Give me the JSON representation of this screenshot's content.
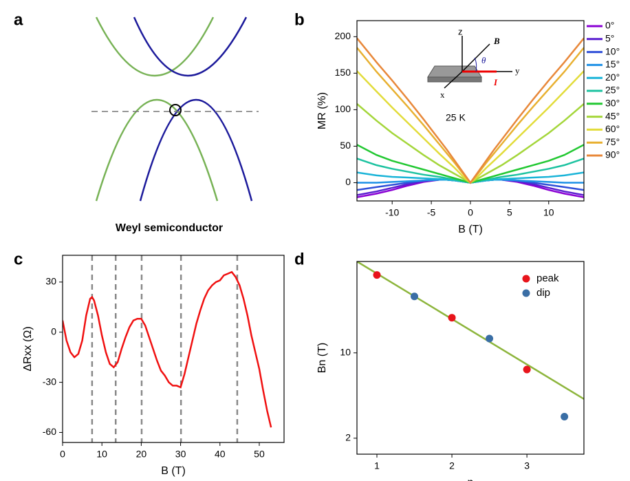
{
  "panel_a": {
    "label": "a",
    "caption": "Weyl semiconductor"
  },
  "chart_data": [
    {
      "type": "line",
      "panel_label": "b",
      "x_label": "B (T)",
      "y_label": "MR (%)",
      "annotation": "25 K",
      "inset_labels": [
        "z",
        "B",
        "θ",
        "y",
        "I",
        "x"
      ],
      "xlim": [
        -14.5,
        14.5
      ],
      "xticks": [
        -10,
        -5,
        0,
        5,
        10
      ],
      "ylim": [
        -25,
        222
      ],
      "yticks": [
        0,
        50,
        100,
        150,
        200
      ],
      "legend": "outside right",
      "x": [
        -14.5,
        -12,
        -10,
        -8,
        -6,
        -4,
        -3,
        -2,
        -1,
        0,
        1,
        2,
        3,
        4,
        6,
        8,
        10,
        12,
        14.5
      ],
      "series": [
        {
          "name": "0°",
          "color": "#8a00d4",
          "values": [
            -20,
            -15,
            -10,
            -4,
            1,
            4,
            4,
            3,
            1.5,
            0,
            1.5,
            3,
            4,
            4,
            1,
            -4,
            -10,
            -15,
            -20
          ]
        },
        {
          "name": "5°",
          "color": "#5a1fd0",
          "values": [
            -17,
            -12,
            -7,
            -2,
            2,
            4,
            4,
            3,
            1.5,
            0,
            1.5,
            3,
            4,
            4,
            2,
            -2,
            -7,
            -12,
            -17
          ]
        },
        {
          "name": "10°",
          "color": "#2f4fd8",
          "values": [
            -10,
            -6,
            -3,
            0,
            3,
            4,
            4,
            3,
            1.5,
            0,
            1.5,
            3,
            4,
            4,
            3,
            0,
            -3,
            -6,
            -10
          ]
        },
        {
          "name": "15°",
          "color": "#1e90e6",
          "values": [
            0,
            0,
            1,
            2,
            3,
            4,
            4,
            3,
            1.5,
            0,
            1.5,
            3,
            4,
            4,
            3,
            2,
            1,
            0,
            0
          ]
        },
        {
          "name": "20°",
          "color": "#1ab4d8",
          "values": [
            14,
            10,
            8,
            7,
            6,
            5,
            4,
            3,
            1.5,
            0,
            1.5,
            3,
            4,
            5,
            6,
            7,
            8,
            10,
            14
          ]
        },
        {
          "name": "25°",
          "color": "#1cc2a0",
          "values": [
            33,
            24,
            19,
            15,
            11,
            8,
            6,
            4,
            2,
            0,
            2,
            4,
            6,
            8,
            11,
            15,
            19,
            24,
            33
          ]
        },
        {
          "name": "30°",
          "color": "#22c832",
          "values": [
            52,
            38,
            30,
            24,
            18,
            12,
            9,
            6,
            3,
            0,
            3,
            6,
            9,
            12,
            18,
            24,
            30,
            38,
            52
          ]
        },
        {
          "name": "45°",
          "color": "#a4d63a",
          "values": [
            108,
            85,
            68,
            53,
            38,
            24,
            18,
            12,
            6,
            0,
            6,
            12,
            18,
            24,
            38,
            53,
            68,
            85,
            108
          ]
        },
        {
          "name": "60°",
          "color": "#e2dc3a",
          "values": [
            153,
            125,
            103,
            82,
            61,
            40,
            30,
            20,
            9,
            0,
            9,
            20,
            30,
            40,
            61,
            82,
            103,
            125,
            153
          ]
        },
        {
          "name": "75°",
          "color": "#e8b030",
          "values": [
            185,
            152,
            128,
            104,
            79,
            53,
            40,
            27,
            13,
            0,
            13,
            27,
            40,
            53,
            79,
            104,
            128,
            152,
            185
          ]
        },
        {
          "name": "90°",
          "color": "#e8883a",
          "values": [
            198,
            165,
            140,
            114,
            87,
            59,
            45,
            30,
            15,
            0,
            15,
            30,
            45,
            59,
            87,
            114,
            140,
            165,
            198
          ]
        }
      ]
    },
    {
      "type": "line",
      "panel_label": "c",
      "x_label": "B (T)",
      "y_label": "ΔRxx (Ω)",
      "xlim": [
        0,
        56.3
      ],
      "xticks": [
        0,
        10,
        20,
        30,
        40,
        50
      ],
      "ylim": [
        -66,
        46
      ],
      "yticks": [
        -60,
        -30,
        0,
        30
      ],
      "vlines": [
        7.5,
        13.5,
        20.1,
        30.1,
        44.4
      ],
      "x": [
        0,
        1,
        2,
        3,
        4,
        5,
        6,
        7,
        7.5,
        8,
        9,
        10,
        11,
        12,
        13,
        14,
        15,
        16,
        17,
        18,
        19,
        20,
        21,
        22,
        23,
        24,
        25,
        26,
        27,
        28,
        29,
        30,
        31,
        32,
        33,
        34,
        35,
        36,
        37,
        38,
        39,
        40,
        41,
        42,
        43,
        44,
        45,
        46,
        47,
        48,
        49,
        50,
        51,
        52,
        53
      ],
      "series": [
        {
          "color": "#f01010",
          "values": [
            7,
            -5,
            -12,
            -15,
            -13,
            -5,
            10,
            20,
            21,
            19,
            10,
            -2,
            -12,
            -19,
            -21,
            -18,
            -10,
            -3,
            3,
            7,
            8,
            8,
            4,
            -3,
            -10,
            -17,
            -23,
            -26,
            -30,
            -32,
            -32,
            -33,
            -25,
            -15,
            -5,
            5,
            13,
            20,
            25,
            28,
            30,
            31,
            34,
            35,
            36,
            33,
            28,
            20,
            10,
            -2,
            -12,
            -22,
            -35,
            -47,
            -57
          ]
        }
      ]
    },
    {
      "type": "scatter",
      "panel_label": "d",
      "x_label": "n",
      "y_label": "Bn (T)",
      "log_y": true,
      "xlim": [
        0.734,
        3.76
      ],
      "xticks": [
        1,
        2,
        3
      ],
      "ylim": [
        1.48,
        56
      ],
      "yticks": [
        2,
        10
      ],
      "legend": "top right",
      "fit": {
        "color": "#8db53c",
        "x": [
          0.734,
          3.76
        ],
        "values": [
          56,
          4.19
        ]
      },
      "series": [
        {
          "name": "peak",
          "color": "#e8141b",
          "x": [
            1,
            2,
            3
          ],
          "values": [
            43.4,
            19.4,
            7.3
          ]
        },
        {
          "name": "dip",
          "color": "#3a6ea5",
          "x": [
            1.5,
            2.5,
            3.5
          ],
          "values": [
            29,
            13.1,
            3.0
          ]
        }
      ]
    }
  ]
}
